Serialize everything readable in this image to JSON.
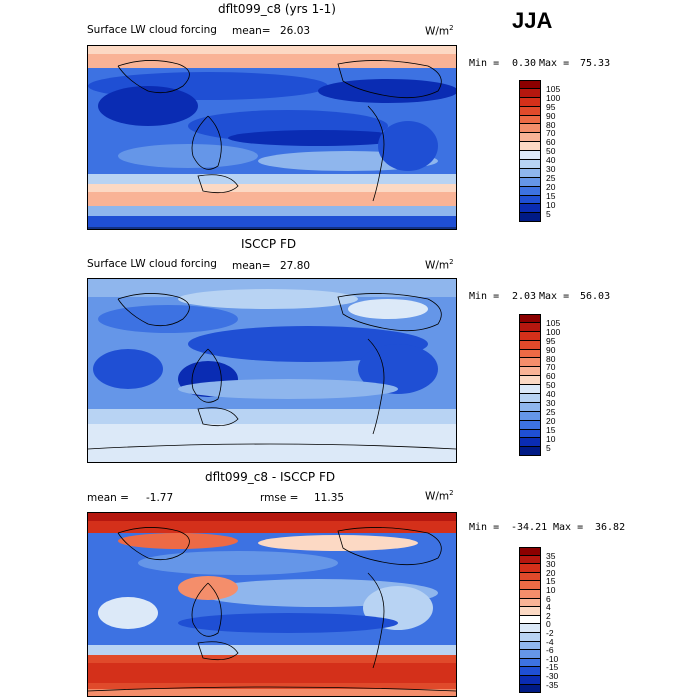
{
  "season": "JJA",
  "panels": [
    {
      "title": "dflt099_c8 (yrs 1-1)",
      "left_text": "Surface LW cloud forcing",
      "mean_text": "mean=",
      "mean_value": "26.03",
      "units": "W/m",
      "units_sup": "2",
      "min_label": "Min =",
      "min_value": "0.30",
      "max_label": "Max =",
      "max_value": "75.33",
      "colorbar": [
        "105",
        "100",
        "95",
        "90",
        "80",
        "70",
        "60",
        "50",
        "40",
        "30",
        "25",
        "20",
        "15",
        "10",
        "5"
      ],
      "colors": [
        "#8b0000",
        "#b5170f",
        "#d4301a",
        "#e04a2b",
        "#ed6a45",
        "#f48e6b",
        "#f9b396",
        "#fcd9c4",
        "#dce9f8",
        "#b8d3f3",
        "#8fb6ed",
        "#6596e8",
        "#3d72e2",
        "#1f4fd4",
        "#0a2cb3",
        "#001a85"
      ]
    },
    {
      "title": "ISCCP FD",
      "left_text": "Surface LW cloud forcing",
      "mean_text": "mean=",
      "mean_value": "27.80",
      "units": "W/m",
      "units_sup": "2",
      "min_label": "Min =",
      "min_value": "2.03",
      "max_label": "Max =",
      "max_value": "56.03",
      "colorbar": [
        "105",
        "100",
        "95",
        "90",
        "80",
        "70",
        "60",
        "50",
        "40",
        "30",
        "25",
        "20",
        "15",
        "10",
        "5"
      ],
      "colors": [
        "#8b0000",
        "#b5170f",
        "#d4301a",
        "#e04a2b",
        "#ed6a45",
        "#f48e6b",
        "#f9b396",
        "#fcd9c4",
        "#dce9f8",
        "#b8d3f3",
        "#8fb6ed",
        "#6596e8",
        "#3d72e2",
        "#1f4fd4",
        "#0a2cb3",
        "#001a85"
      ]
    },
    {
      "title": "dflt099_c8 - ISCCP FD",
      "left_text": "mean =",
      "mean_value": "-1.77",
      "rmse_text": "rmse =",
      "rmse_value": "11.35",
      "units": "W/m",
      "units_sup": "2",
      "min_label": "Min =",
      "min_value": "-34.21",
      "max_label": "Max =",
      "max_value": "36.82",
      "colorbar": [
        "35",
        "30",
        "20",
        "15",
        "10",
        "6",
        "4",
        "2",
        "0",
        "-2",
        "-4",
        "-6",
        "-10",
        "-15",
        "-30",
        "-35"
      ],
      "colors": [
        "#8b0000",
        "#b5170f",
        "#d4301a",
        "#e04a2b",
        "#ed6a45",
        "#f48e6b",
        "#f9b396",
        "#fcd9c4",
        "#ffffff",
        "#dce9f8",
        "#b8d3f3",
        "#8fb6ed",
        "#6596e8",
        "#3d72e2",
        "#1f4fd4",
        "#0a2cb3",
        "#001a85"
      ]
    }
  ]
}
